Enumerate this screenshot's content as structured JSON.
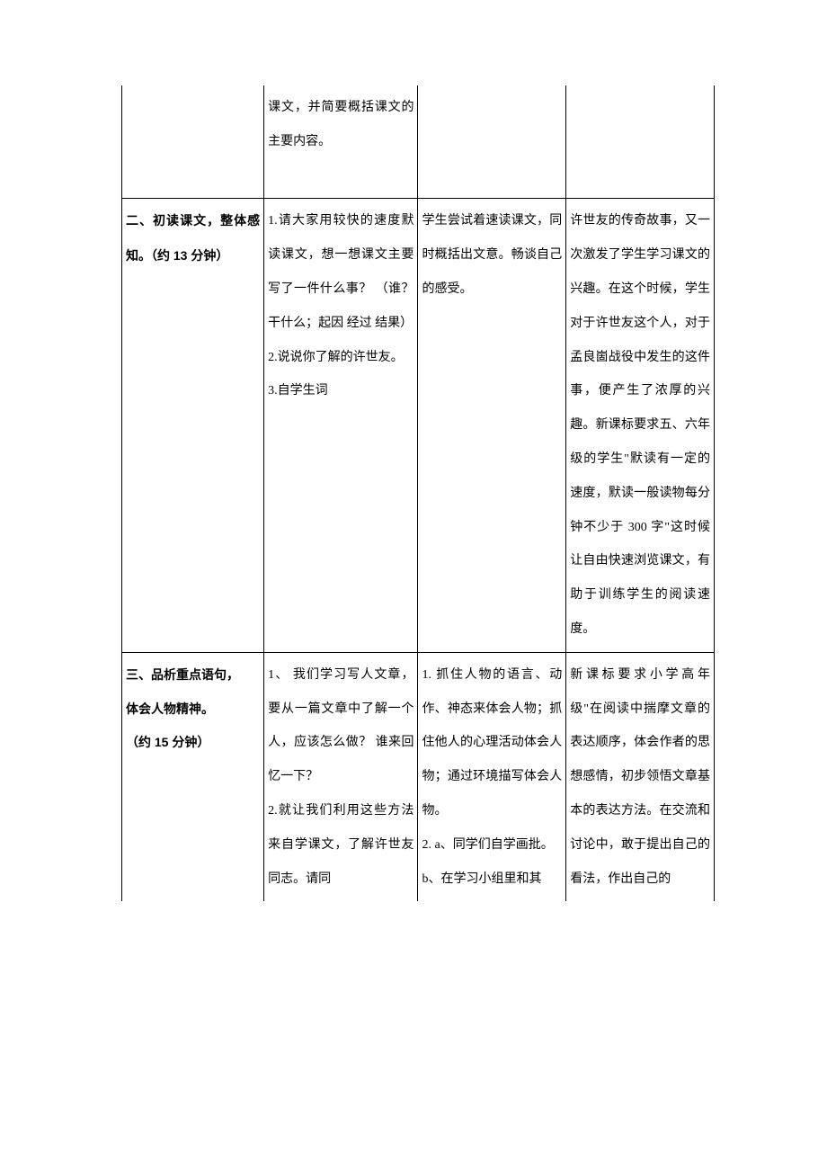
{
  "row1": {
    "c1": "",
    "c2": "课文，并简要概括课文的主要内容。",
    "c3": "",
    "c4": ""
  },
  "row2": {
    "c1": "二、初读课文，整体感知。（约 13 分钟）",
    "c2": "1.请大家用较快的速度默读课文，想一想课文主要写了一件什么事？ （谁？干什么；起因 经过 结果）\n2.说说你了解的许世友。\n3.自学生词",
    "c3": "学生尝试着速读课文，同时概括出文意。畅谈自己的感受。",
    "c4": "许世友的传奇故事，又一次激发了学生学习课文的兴趣。在这个时候，学生对于许世友这个人，对于孟良崮战役中发生的这件事，便产生了浓厚的兴趣。新课标要求五、六年级的学生\"默读有一定的速度，默读一般读物每分钟不少于 300 字\"这时候让自由快速浏览课文，有助于训练学生的阅读速度。"
  },
  "row3": {
    "c1_l1": "三、品析重点语句，",
    "c1_l2": "体会人物精神。",
    "c1_l3": "（约 15 分钟）",
    "c2": "1、 我们学习写人文章，要从一篇文章中了解一个人，应该怎么做？ 谁来回忆一下？\n2.就让我们利用这些方法来自学课文，了解许世友同志。请同",
    "c3": "1. 抓住人物的语言、动作、神态来体会人物；抓住他人的心理活动体会人物；通过环境描写体会人物。\n2. a、同学们自学画批。\nb、在学习小组里和其",
    "c4": "新课标要求小学高年级\"在阅读中揣摩文章的表达顺序，体会作者的思想感情，初步领悟文章基本的表达方法。在交流和讨论中，敢于提出自己的看法，作出自己的"
  }
}
